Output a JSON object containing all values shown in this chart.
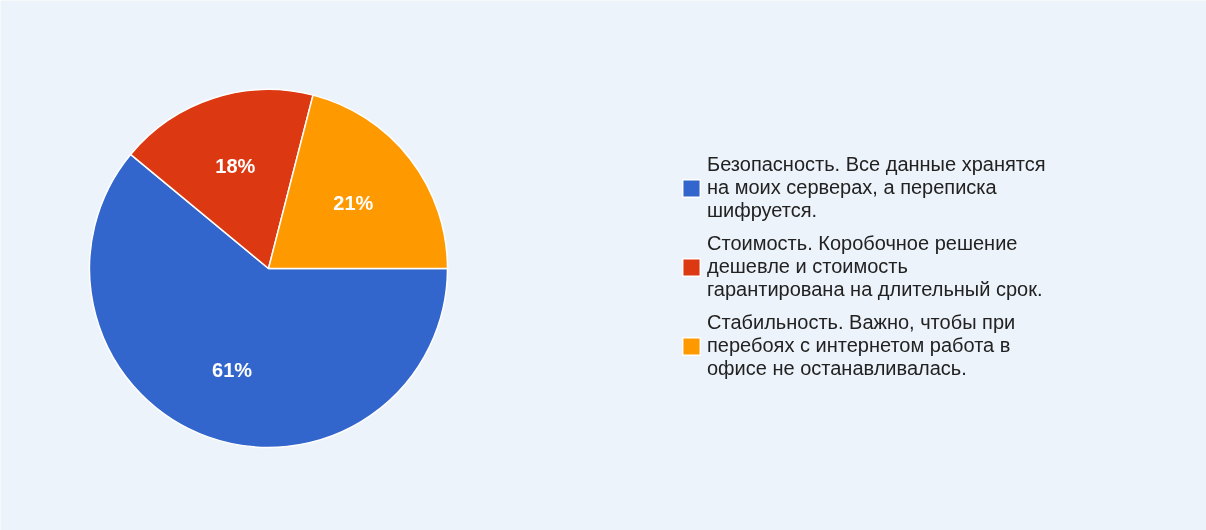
{
  "chart_data": {
    "type": "pie",
    "categories": [
      "Безопасность. Все данные хранятся\nна моих серверах, а переписка\nшифруется.",
      "Стоимость. Коробочное решение\nдешевле и стоимость\nгарантирована на длительный срок.",
      "Стабильность. Важно, чтобы при\nперебоях с интернетом работа в\nофисе не останавливалась."
    ],
    "values": [
      61,
      18,
      21
    ],
    "value_labels": [
      "61%",
      "18%",
      "21%"
    ],
    "colors": [
      "#3366cc",
      "#dc3912",
      "#ff9900"
    ],
    "legend": "right"
  }
}
